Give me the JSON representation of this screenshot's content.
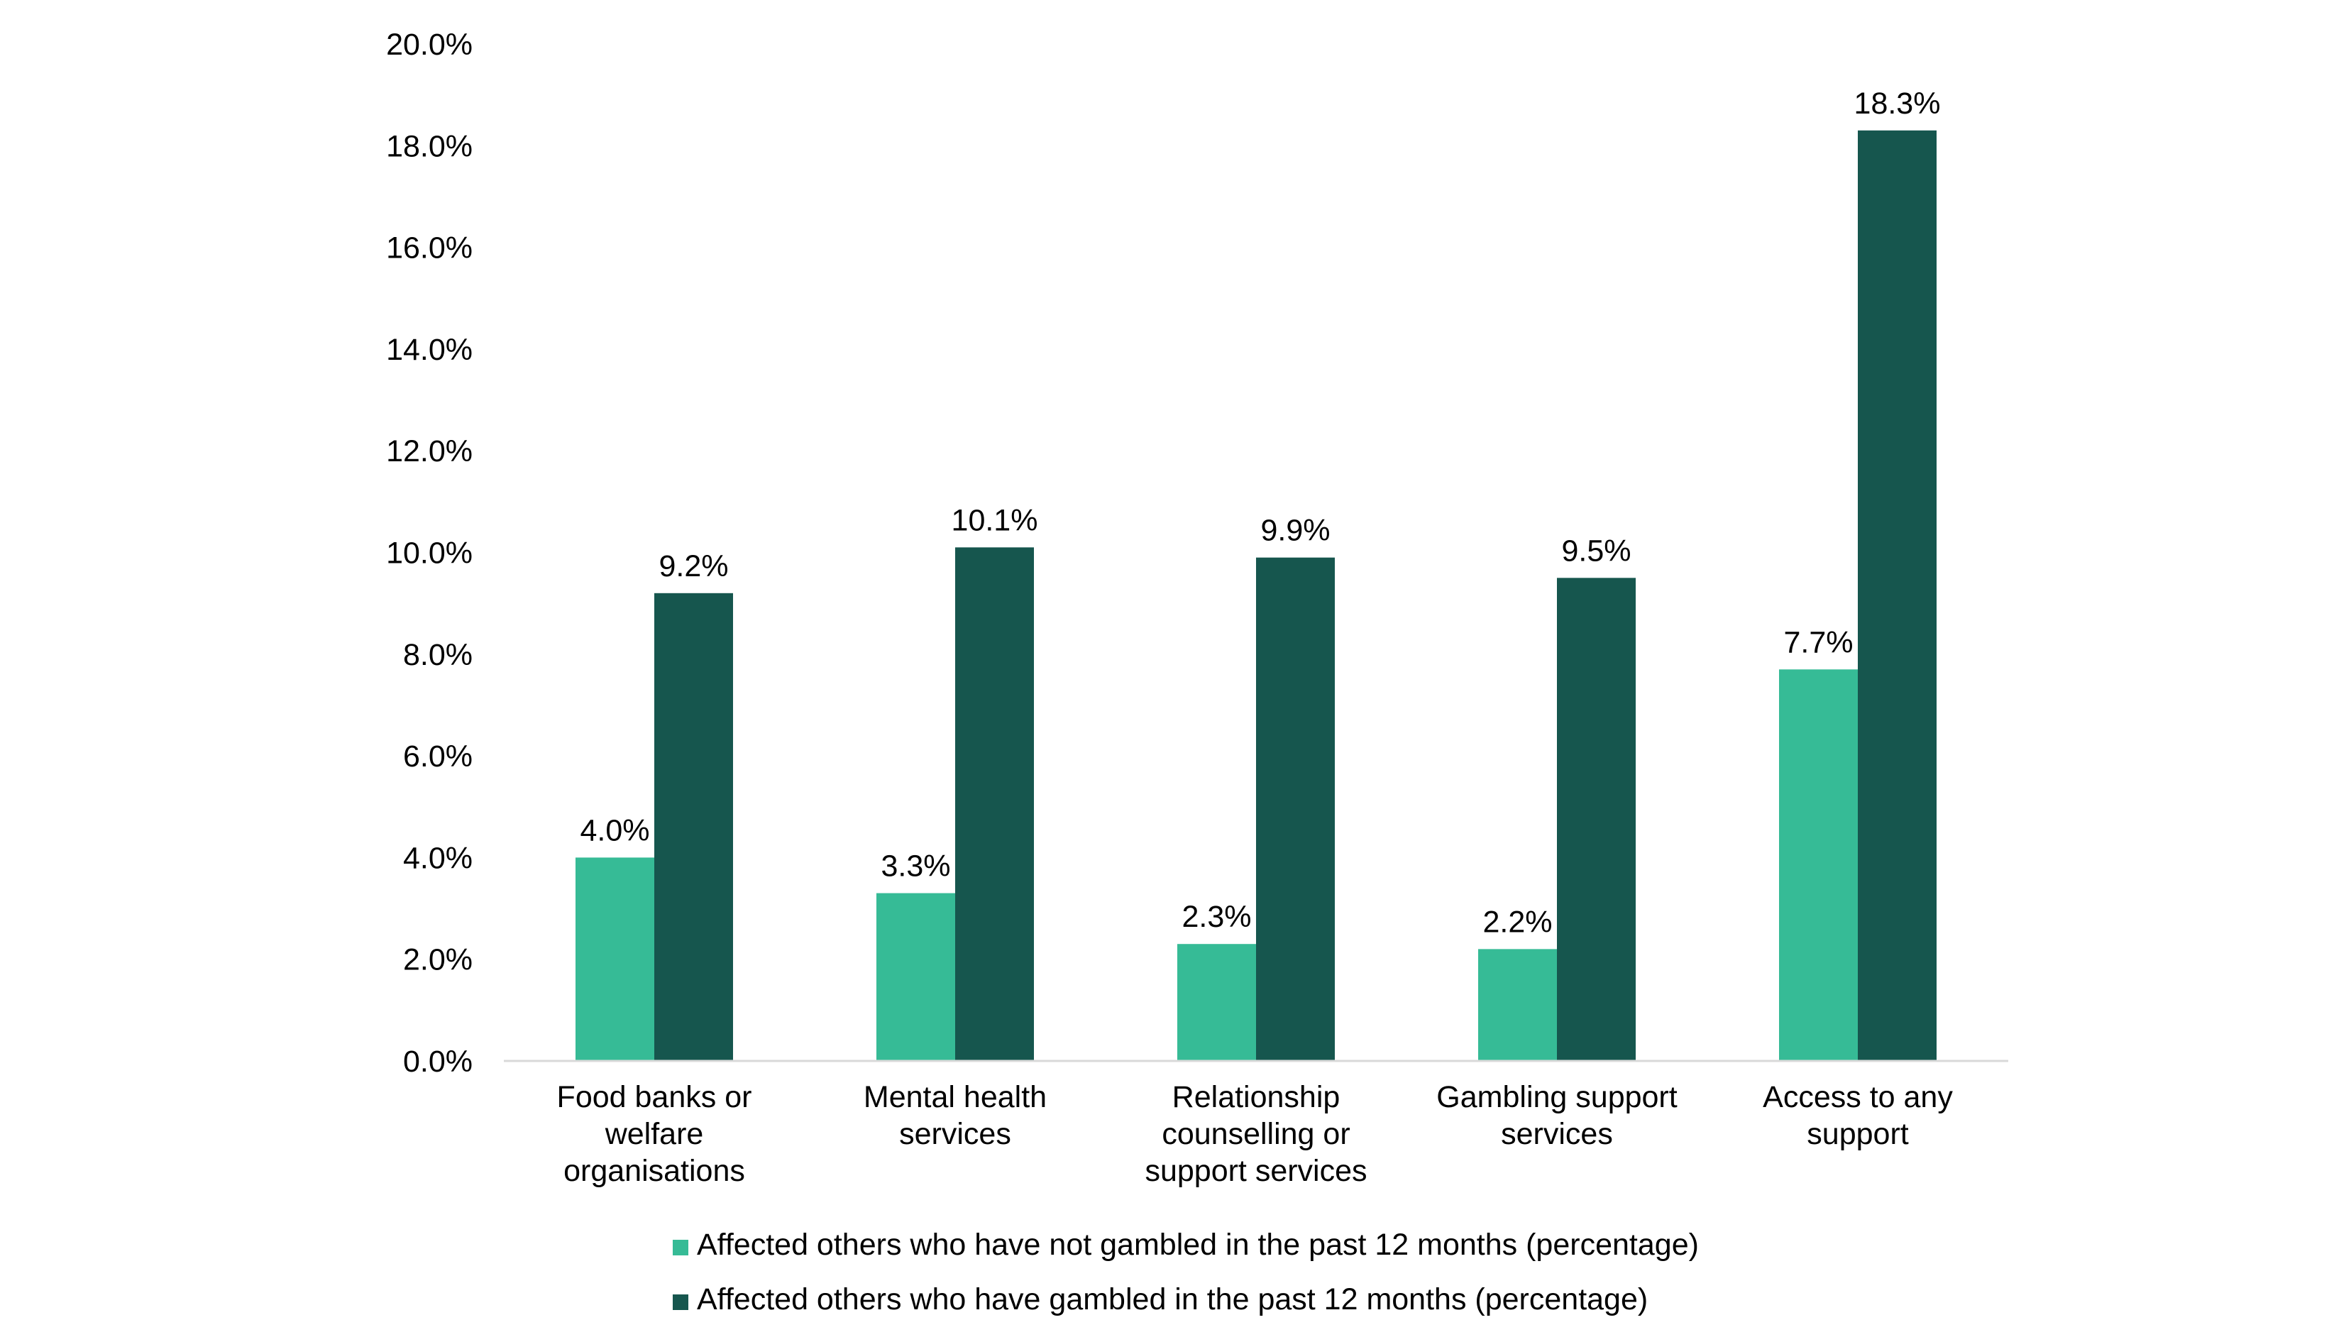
{
  "chart_data": {
    "type": "bar",
    "categories": [
      [
        "Food banks or",
        "welfare",
        "organisations"
      ],
      [
        "Mental health",
        "services"
      ],
      [
        "Relationship",
        "counselling or",
        "support services"
      ],
      [
        "Gambling support",
        "services"
      ],
      [
        "Access to any",
        "support"
      ]
    ],
    "series": [
      {
        "name": "Affected others who have not gambled in the past 12 months (percentage)",
        "color": "#36BB96",
        "values": [
          4.0,
          3.3,
          2.3,
          2.2,
          7.7
        ],
        "labels": [
          "4.0%",
          "3.3%",
          "2.3%",
          "2.2%",
          "7.7%"
        ]
      },
      {
        "name": "Affected others who have gambled in the past 12 months (percentage)",
        "color": "#16564E",
        "values": [
          9.2,
          10.1,
          9.9,
          9.5,
          18.3
        ],
        "labels": [
          "9.2%",
          "10.1%",
          "9.9%",
          "9.5%",
          "18.3%"
        ]
      }
    ],
    "ylim": [
      0,
      20
    ],
    "yticks": [
      0,
      2,
      4,
      6,
      8,
      10,
      12,
      14,
      16,
      18,
      20
    ],
    "ytick_labels": [
      "0.0%",
      "2.0%",
      "4.0%",
      "6.0%",
      "8.0%",
      "10.0%",
      "12.0%",
      "14.0%",
      "16.0%",
      "18.0%",
      "20.0%"
    ],
    "title": "",
    "xlabel": "",
    "ylabel": "",
    "grid": false,
    "legend_position": "bottom"
  }
}
